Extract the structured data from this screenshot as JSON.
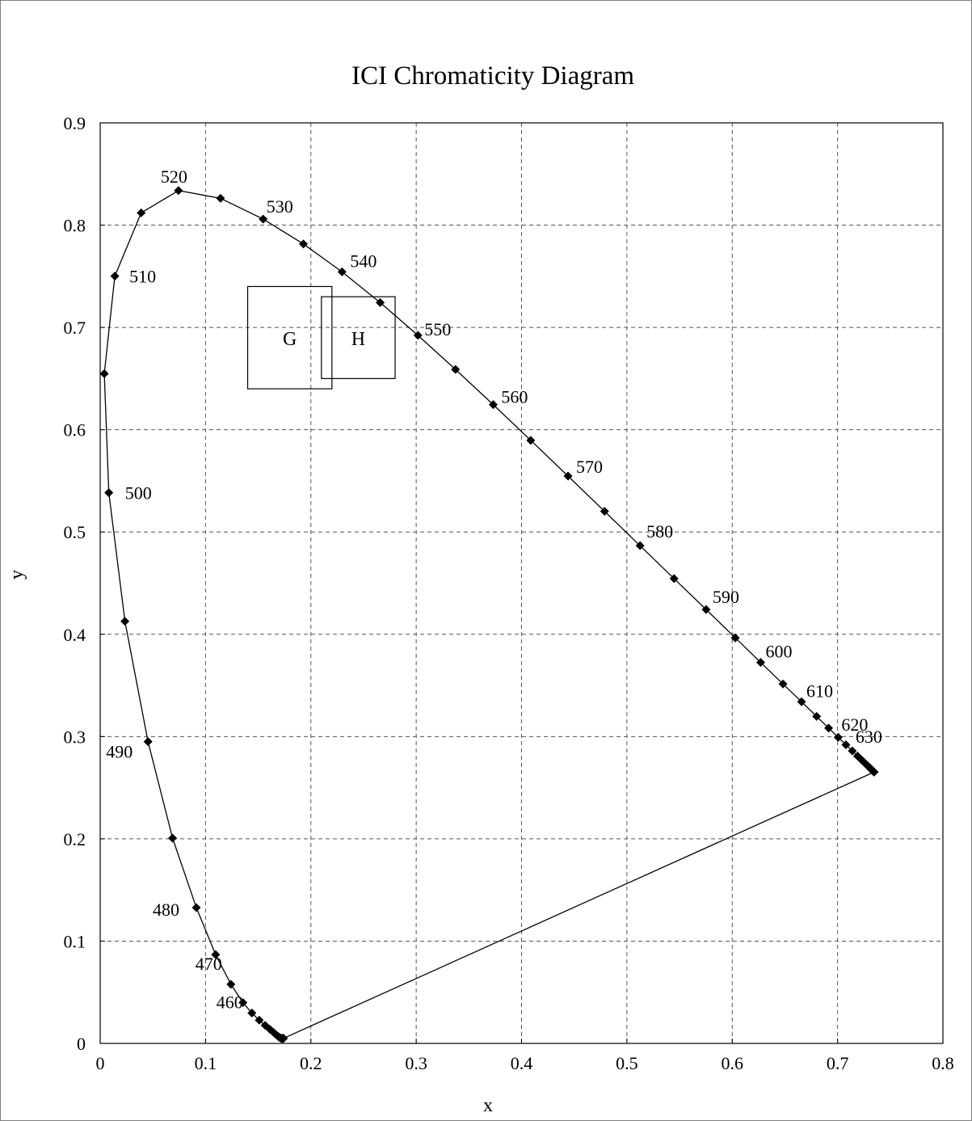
{
  "chart_data": {
    "type": "scatter",
    "title": "ICI Chromaticity Diagram",
    "xlabel": "x",
    "ylabel": "y",
    "xlim": [
      0,
      0.8
    ],
    "ylim": [
      0,
      0.9
    ],
    "x_ticks": [
      "0",
      "0.1",
      "0.2",
      "0.3",
      "0.4",
      "0.5",
      "0.6",
      "0.7",
      "0.8"
    ],
    "y_ticks": [
      "0",
      "0.1",
      "0.2",
      "0.3",
      "0.4",
      "0.5",
      "0.6",
      "0.7",
      "0.8",
      "0.9"
    ],
    "grid": true,
    "grid_style": "dashed",
    "marker": "diamond",
    "series": [
      {
        "points": [
          [
            0.1741,
            0.005
          ],
          [
            0.1738,
            0.0049
          ],
          [
            0.1736,
            0.0049
          ],
          [
            0.1733,
            0.0048
          ],
          [
            0.173,
            0.0048
          ],
          [
            0.1726,
            0.0048
          ],
          [
            0.1721,
            0.0048
          ],
          [
            0.1714,
            0.0051
          ],
          [
            0.1703,
            0.0058
          ],
          [
            0.1689,
            0.0069
          ],
          [
            0.1669,
            0.0086
          ],
          [
            0.1644,
            0.0109
          ],
          [
            0.1611,
            0.0138
          ],
          [
            0.1566,
            0.0177
          ],
          [
            0.151,
            0.0227
          ],
          [
            0.144,
            0.0297
          ],
          [
            0.1355,
            0.0399
          ],
          [
            0.1241,
            0.0578
          ],
          [
            0.1096,
            0.0868
          ],
          [
            0.0913,
            0.1327
          ],
          [
            0.0687,
            0.2007
          ],
          [
            0.0454,
            0.295
          ],
          [
            0.0235,
            0.4127
          ],
          [
            0.0082,
            0.5384
          ],
          [
            0.0039,
            0.6548
          ],
          [
            0.0139,
            0.7502
          ],
          [
            0.0389,
            0.812
          ],
          [
            0.0743,
            0.8338
          ],
          [
            0.1142,
            0.8262
          ],
          [
            0.1547,
            0.8059
          ],
          [
            0.1929,
            0.7816
          ],
          [
            0.2296,
            0.7543
          ],
          [
            0.2658,
            0.7243
          ],
          [
            0.3016,
            0.6923
          ],
          [
            0.3373,
            0.6589
          ],
          [
            0.3731,
            0.6245
          ],
          [
            0.4087,
            0.5896
          ],
          [
            0.4441,
            0.5547
          ],
          [
            0.4788,
            0.5202
          ],
          [
            0.5125,
            0.4866
          ],
          [
            0.5448,
            0.4544
          ],
          [
            0.5752,
            0.4242
          ],
          [
            0.6029,
            0.3965
          ],
          [
            0.627,
            0.3725
          ],
          [
            0.6482,
            0.3514
          ],
          [
            0.6658,
            0.334
          ],
          [
            0.6801,
            0.3197
          ],
          [
            0.6915,
            0.3083
          ],
          [
            0.7006,
            0.2993
          ],
          [
            0.7079,
            0.292
          ],
          [
            0.714,
            0.2859
          ],
          [
            0.719,
            0.2809
          ],
          [
            0.723,
            0.277
          ],
          [
            0.726,
            0.274
          ],
          [
            0.7283,
            0.2717
          ],
          [
            0.73,
            0.27
          ],
          [
            0.7311,
            0.2689
          ],
          [
            0.732,
            0.268
          ],
          [
            0.7327,
            0.2673
          ],
          [
            0.7334,
            0.2666
          ],
          [
            0.734,
            0.266
          ],
          [
            0.7344,
            0.2656
          ],
          [
            0.7346,
            0.2654
          ],
          [
            0.7347,
            0.2653
          ]
        ]
      }
    ],
    "purple_line": [
      [
        0.1741,
        0.005
      ],
      [
        0.7347,
        0.2653
      ]
    ],
    "wavelength_labels": [
      {
        "text": "460",
        "x": 0.144,
        "y": 0.0297
      },
      {
        "text": "470",
        "x": 0.1241,
        "y": 0.0578
      },
      {
        "text": "480",
        "x": 0.0913,
        "y": 0.1327
      },
      {
        "text": "490",
        "x": 0.0454,
        "y": 0.295
      },
      {
        "text": "500",
        "x": 0.0082,
        "y": 0.5384
      },
      {
        "text": "510",
        "x": 0.0139,
        "y": 0.7502
      },
      {
        "text": "520",
        "x": 0.0743,
        "y": 0.8338
      },
      {
        "text": "530",
        "x": 0.1547,
        "y": 0.8059
      },
      {
        "text": "540",
        "x": 0.2296,
        "y": 0.7543
      },
      {
        "text": "550",
        "x": 0.3016,
        "y": 0.6923
      },
      {
        "text": "560",
        "x": 0.3731,
        "y": 0.6245
      },
      {
        "text": "570",
        "x": 0.4441,
        "y": 0.5547
      },
      {
        "text": "580",
        "x": 0.5125,
        "y": 0.4866
      },
      {
        "text": "590",
        "x": 0.5752,
        "y": 0.4242
      },
      {
        "text": "600",
        "x": 0.627,
        "y": 0.3725
      },
      {
        "text": "610",
        "x": 0.6658,
        "y": 0.334
      },
      {
        "text": "620",
        "x": 0.7006,
        "y": 0.2993
      },
      {
        "text": "630",
        "x": 0.714,
        "y": 0.2859
      }
    ],
    "boxes": [
      {
        "label": "G",
        "x0": 0.14,
        "x1": 0.22,
        "y0": 0.64,
        "y1": 0.74
      },
      {
        "label": "H",
        "x0": 0.21,
        "x1": 0.28,
        "y0": 0.65,
        "y1": 0.73
      }
    ]
  }
}
